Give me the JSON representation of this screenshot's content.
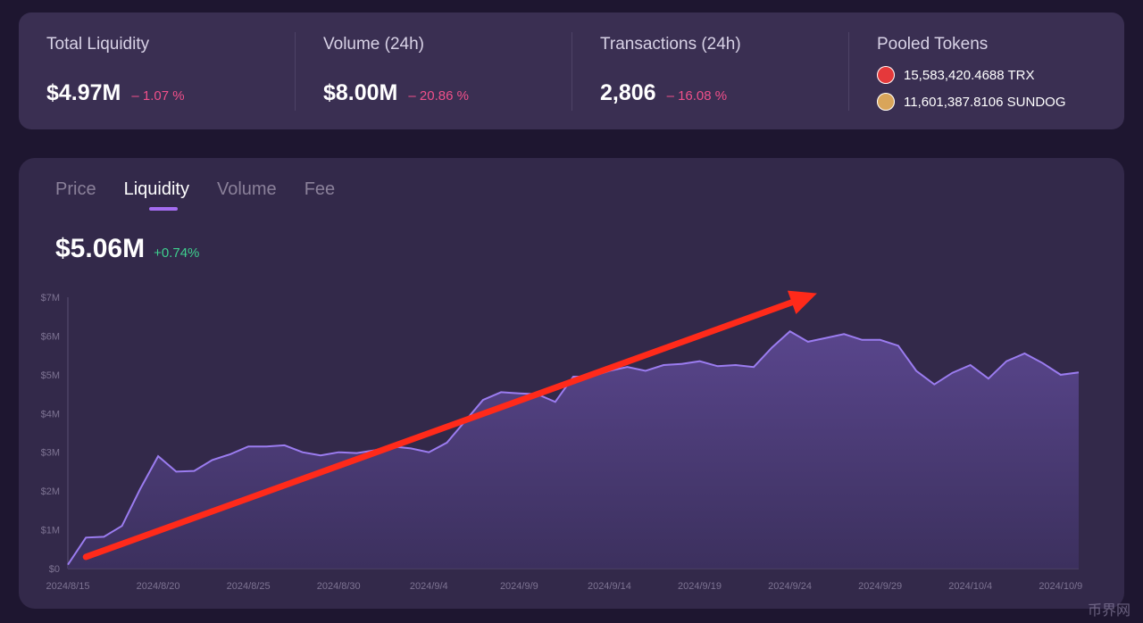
{
  "stats": {
    "total_liquidity": {
      "title": "Total Liquidity",
      "value": "$4.97M",
      "change": "– 1.07 %"
    },
    "volume": {
      "title": "Volume (24h)",
      "value": "$8.00M",
      "change": "– 20.86 %"
    },
    "transactions": {
      "title": "Transactions (24h)",
      "value": "2,806",
      "change": "– 16.08 %"
    },
    "pooled": {
      "title": "Pooled Tokens",
      "tokens": [
        {
          "amount": "15,583,420.4688 TRX",
          "icon": "trx-icon"
        },
        {
          "amount": "11,601,387.8106 SUNDOG",
          "icon": "sundog-icon"
        }
      ]
    }
  },
  "tabs": [
    "Price",
    "Liquidity",
    "Volume",
    "Fee"
  ],
  "active_tab": "Liquidity",
  "headline": {
    "value": "$5.06M",
    "change": "+0.74%"
  },
  "colors": {
    "negative": "#f0508a",
    "positive": "#3ecf8e",
    "line": "#9b7cf0",
    "arrow": "#ff2a1a",
    "accent": "#a46cf0"
  },
  "watermark": "币界网",
  "chart_data": {
    "type": "area",
    "title": "Liquidity",
    "xlabel": "",
    "ylabel": "",
    "ylim": [
      0,
      7
    ],
    "yticks": [
      "$0",
      "$1M",
      "$2M",
      "$3M",
      "$4M",
      "$5M",
      "$6M",
      "$7M"
    ],
    "xticks": [
      "2024/8/15",
      "2024/8/20",
      "2024/8/25",
      "2024/8/30",
      "2024/9/4",
      "2024/9/9",
      "2024/9/14",
      "2024/9/19",
      "2024/9/24",
      "2024/9/29",
      "2024/10/4",
      "2024/10/9"
    ],
    "series": [
      {
        "name": "Liquidity ($M)",
        "values": [
          0.1,
          0.8,
          0.82,
          1.1,
          2.05,
          2.9,
          2.5,
          2.52,
          2.8,
          2.95,
          3.15,
          3.15,
          3.18,
          3.0,
          2.92,
          3.0,
          2.98,
          3.05,
          3.15,
          3.1,
          3.0,
          3.25,
          3.8,
          4.35,
          4.55,
          4.52,
          4.5,
          4.3,
          4.95,
          4.95,
          5.1,
          5.2,
          5.1,
          5.25,
          5.28,
          5.35,
          5.22,
          5.25,
          5.2,
          5.7,
          6.12,
          5.85,
          5.95,
          6.05,
          5.9,
          5.9,
          5.75,
          5.1,
          4.75,
          5.05,
          5.25,
          4.9,
          5.35,
          5.55,
          5.3,
          5.0,
          5.06
        ]
      }
    ],
    "annotations": [
      {
        "type": "arrow",
        "from": {
          "x_index": 1,
          "y": 0.3
        },
        "to": {
          "x_index": 41.5,
          "y": 7.1
        },
        "description": "uptrend arrow"
      }
    ]
  }
}
